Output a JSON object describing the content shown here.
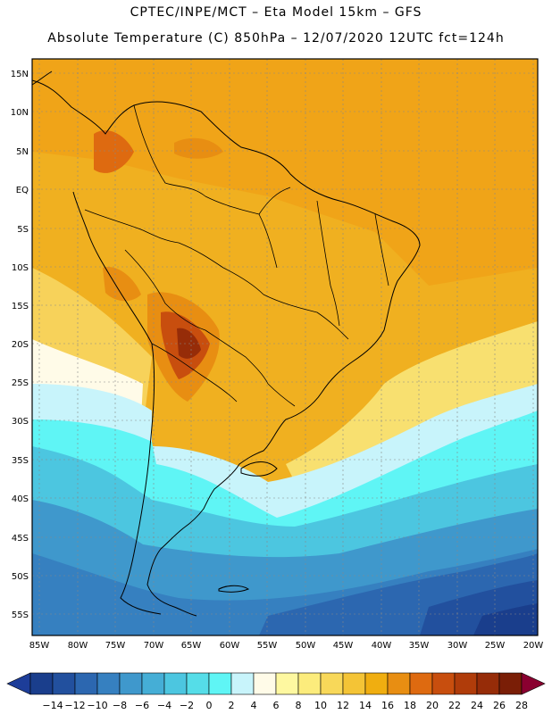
{
  "header": {
    "line1": "CPTEC/INPE/MCT –  Eta Model 15km – GFS",
    "line2": "Absolute Temperature (C) 850hPa – 12/07/2020 12UTC fct=124h"
  },
  "map": {
    "lat_labels": [
      "15N",
      "10N",
      "5N",
      "EQ",
      "5S",
      "10S",
      "15S",
      "20S",
      "25S",
      "30S",
      "35S",
      "40S",
      "45S",
      "50S",
      "55S"
    ],
    "lon_labels": [
      "85W",
      "80W",
      "75W",
      "70W",
      "65W",
      "60W",
      "55W",
      "50W",
      "45W",
      "40W",
      "35W",
      "30W",
      "25W",
      "20W"
    ]
  },
  "colorbar": {
    "colors": [
      "#1a3e8c",
      "#22509e",
      "#2c67b0",
      "#3680c0",
      "#3f98cc",
      "#45aed6",
      "#4cc6e0",
      "#55dde8",
      "#5ff5f5",
      "#c8f4fb",
      "#fffbe8",
      "#fef8a0",
      "#fcec7c",
      "#f8d859",
      "#f4c436",
      "#f0ae10",
      "#e88e12",
      "#de6a10",
      "#c84e0e",
      "#b03c0a",
      "#962c08",
      "#7a1e06"
    ],
    "left_arrow_color": "#1d3d99",
    "right_arrow_color": "#8a0030",
    "labels": [
      "-14",
      "-12",
      "-10",
      "-8",
      "-6",
      "-4",
      "-2",
      "0",
      "2",
      "4",
      "6",
      "8",
      "10",
      "12",
      "14",
      "16",
      "18",
      "20",
      "22",
      "24",
      "26",
      "28"
    ]
  }
}
